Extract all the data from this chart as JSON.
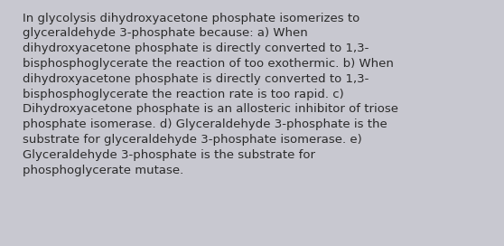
{
  "background_color": "#c8c8d0",
  "text_color": "#2a2a2a",
  "font_size": 9.5,
  "wrapped_text": "In glycolysis dihydroxyacetone phosphate isomerizes to\nglyceraldehyde 3-phosphate because: a) When\ndihydroxyacetone phosphate is directly converted to 1,3-\nbisphosphoglycerate the reaction of too exothermic. b) When\ndihydroxyacetone phosphate is directly converted to 1,3-\nbisphosphoglycerate the reaction rate is too rapid. c)\nDihydroxyacetone phosphate is an allosteric inhibitor of triose\nphosphate isomerase. d) Glyceraldehyde 3-phosphate is the\nsubstrate for glyceraldehyde 3-phosphate isomerase. e)\nGlyceraldehyde 3-phosphate is the substrate for\nphosphoglycerate mutase.",
  "fig_width": 5.58,
  "fig_height": 2.72,
  "dpi": 100
}
